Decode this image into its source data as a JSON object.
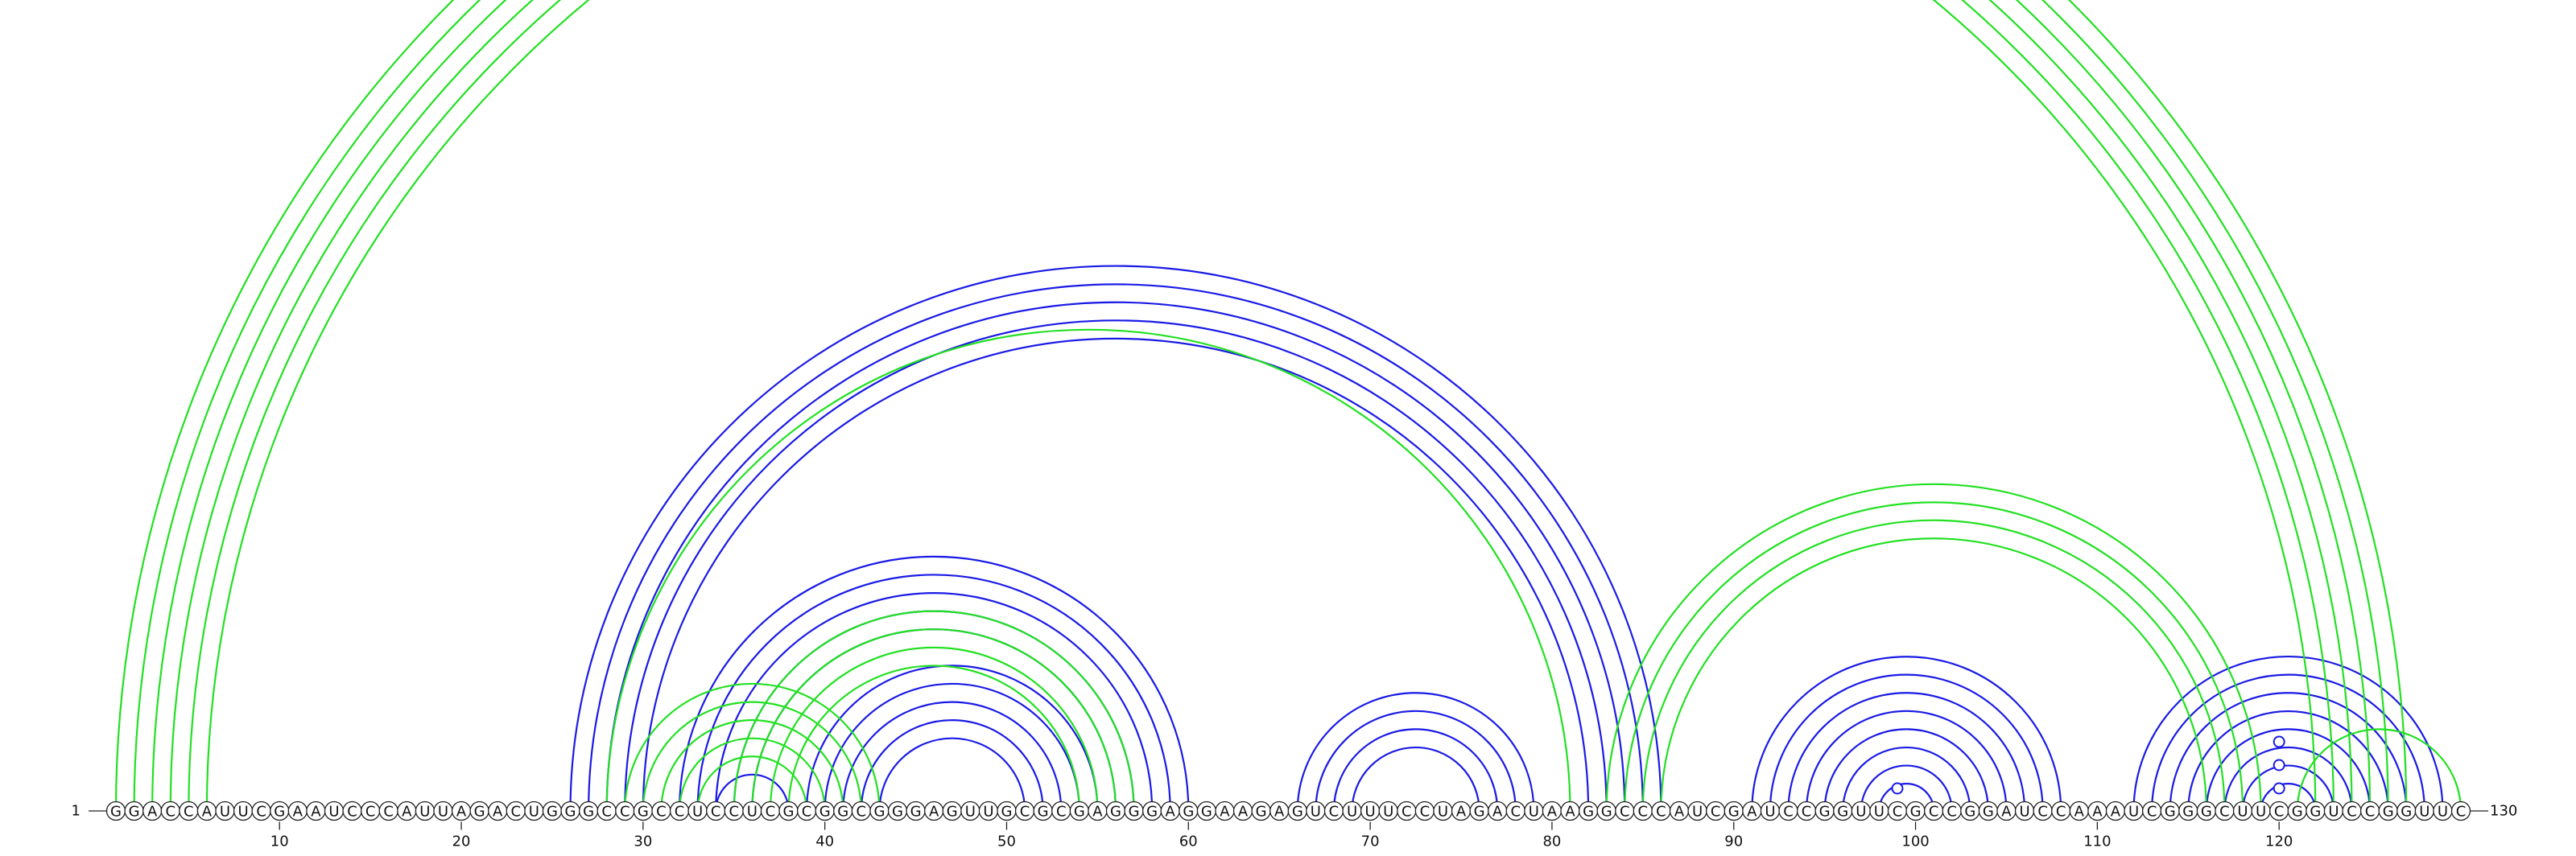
{
  "sequence": "GGACCAUUCGAAUCCCAUUAGACUGGGCCGCCUCCUCGCGGCGGGAGUUGCGCGAGGGAGGAAGAGUCUUUCCUAGACUAAGGCCCAUCGAUCCGGUUCGCCGGAUCCAAAUCGGGCUUCGGUCCGGUUC",
  "labels": {
    "start": "1",
    "end": "130"
  },
  "ticks": [
    10,
    20,
    30,
    40,
    50,
    60,
    70,
    80,
    90,
    100,
    110,
    120
  ],
  "colors": {
    "blue": "#1a1ae6",
    "green": "#22e022",
    "outline": "#222222"
  },
  "arcs": {
    "green": [
      [
        1,
        127
      ],
      [
        2,
        126
      ],
      [
        3,
        125
      ],
      [
        4,
        124
      ],
      [
        5,
        123
      ],
      [
        6,
        122
      ],
      [
        28,
        81
      ],
      [
        29,
        43
      ],
      [
        30,
        42
      ],
      [
        31,
        41
      ],
      [
        32,
        40
      ],
      [
        33,
        39
      ],
      [
        35,
        57
      ],
      [
        36,
        56
      ],
      [
        37,
        55
      ],
      [
        38,
        54
      ],
      [
        83,
        119
      ],
      [
        84,
        118
      ],
      [
        85,
        117
      ],
      [
        86,
        116
      ],
      [
        121,
        130
      ]
    ],
    "blue": [
      [
        26,
        86
      ],
      [
        27,
        85
      ],
      [
        28,
        84
      ],
      [
        29,
        83
      ],
      [
        30,
        82
      ],
      [
        32,
        60
      ],
      [
        33,
        59
      ],
      [
        34,
        58
      ],
      [
        35,
        57
      ],
      [
        36,
        56
      ],
      [
        39,
        55
      ],
      [
        40,
        54
      ],
      [
        41,
        53
      ],
      [
        42,
        52
      ],
      [
        43,
        51
      ],
      [
        34,
        38
      ],
      [
        66,
        79
      ],
      [
        67,
        78
      ],
      [
        68,
        77
      ],
      [
        69,
        76
      ],
      [
        91,
        108
      ],
      [
        92,
        107
      ],
      [
        93,
        106
      ],
      [
        94,
        105
      ],
      [
        95,
        104
      ],
      [
        96,
        103
      ],
      [
        97,
        102
      ],
      [
        98,
        101
      ],
      [
        112,
        129
      ],
      [
        113,
        128
      ],
      [
        114,
        127
      ],
      [
        115,
        126
      ],
      [
        116,
        125
      ],
      [
        117,
        124
      ],
      [
        118,
        123
      ],
      [
        119,
        122
      ]
    ]
  },
  "markers": [
    {
      "color": "green",
      "position": 66,
      "level": "top"
    },
    {
      "color": "blue",
      "position": 99,
      "level": "small"
    },
    {
      "color": "blue",
      "position": 120,
      "level": "1"
    },
    {
      "color": "blue",
      "position": 120,
      "level": "2"
    },
    {
      "color": "blue",
      "position": 120,
      "level": "3"
    }
  ]
}
